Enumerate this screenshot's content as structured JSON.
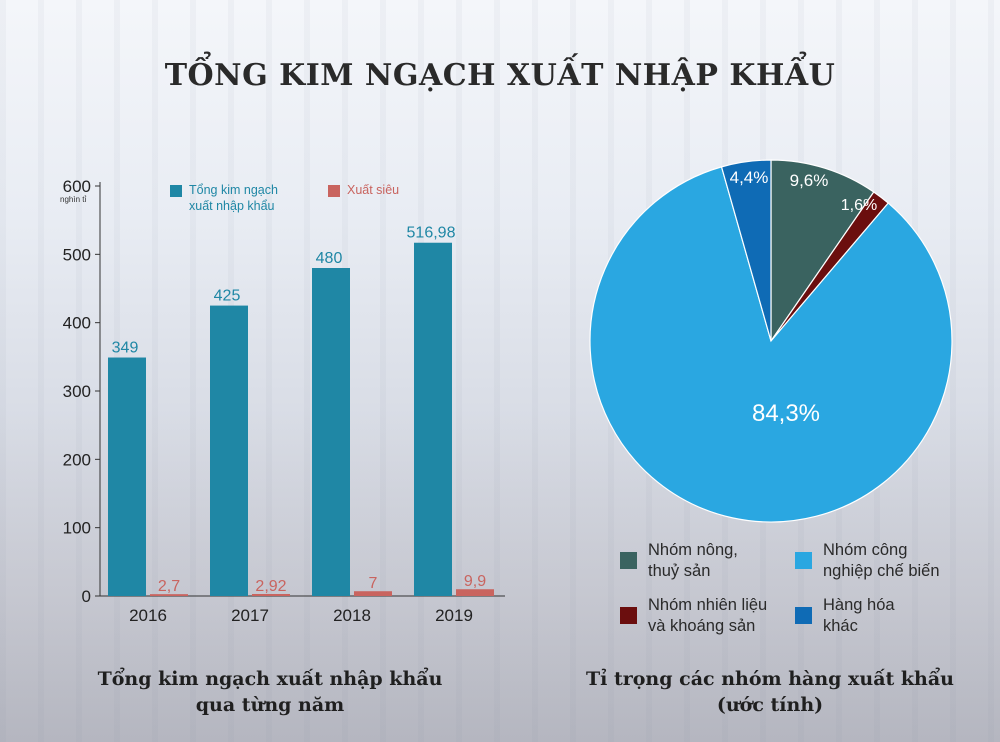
{
  "title": "TỔNG KIM NGẠCH XUẤT NHẬP KHẨU",
  "chart_data": [
    {
      "type": "bar",
      "title": "",
      "caption": [
        "Tổng kim ngạch xuất nhập khẩu",
        "qua từng năm"
      ],
      "ylabel": "",
      "yunit": "nghìn tỉ",
      "ylim": [
        0,
        600
      ],
      "yticks": [
        0,
        100,
        200,
        300,
        400,
        500,
        600
      ],
      "categories": [
        "2016",
        "2017",
        "2018",
        "2019"
      ],
      "series": [
        {
          "name": "Tổng kim ngạch xuất nhập khẩu",
          "color": "#1f87a5",
          "values": [
            349,
            425,
            480,
            516.98
          ],
          "labels": [
            "349",
            "425",
            "480",
            "516,98"
          ]
        },
        {
          "name": "Xuất siêu",
          "color": "#c9645f",
          "values": [
            2.7,
            2.92,
            7,
            9.9
          ],
          "labels": [
            "2,7",
            "2,92",
            "7",
            "9,9"
          ]
        }
      ],
      "legend_position": "top"
    },
    {
      "type": "pie",
      "title": "",
      "caption": [
        "Tỉ trọng các nhóm hàng xuất khẩu",
        "(ước tính)"
      ],
      "slices": [
        {
          "name": "Nhóm nông, thuỷ sản",
          "value": 9.6,
          "label": "9,6%",
          "color": "#3a6360"
        },
        {
          "name": "Nhóm nhiên liệu và khoáng sản",
          "value": 1.6,
          "label": "1,6%",
          "color": "#6b0e0e"
        },
        {
          "name": "Nhóm công nghiệp chế biến",
          "value": 84.3,
          "label": "84,3%",
          "color": "#2aa7e1"
        },
        {
          "name": "Hàng hóa khác",
          "value": 4.4,
          "label": "4,4%",
          "color": "#0f6bb5"
        }
      ],
      "legend": [
        {
          "lines": [
            "Nhóm nông,",
            "thuỷ sản"
          ],
          "color": "#3a6360"
        },
        {
          "lines": [
            "Nhóm công",
            "nghiệp chế biến"
          ],
          "color": "#2aa7e1"
        },
        {
          "lines": [
            "Nhóm nhiên liệu",
            "và khoáng sản"
          ],
          "color": "#6b0e0e"
        },
        {
          "lines": [
            "Hàng hóa",
            "khác"
          ],
          "color": "#0f6bb5"
        }
      ]
    }
  ]
}
